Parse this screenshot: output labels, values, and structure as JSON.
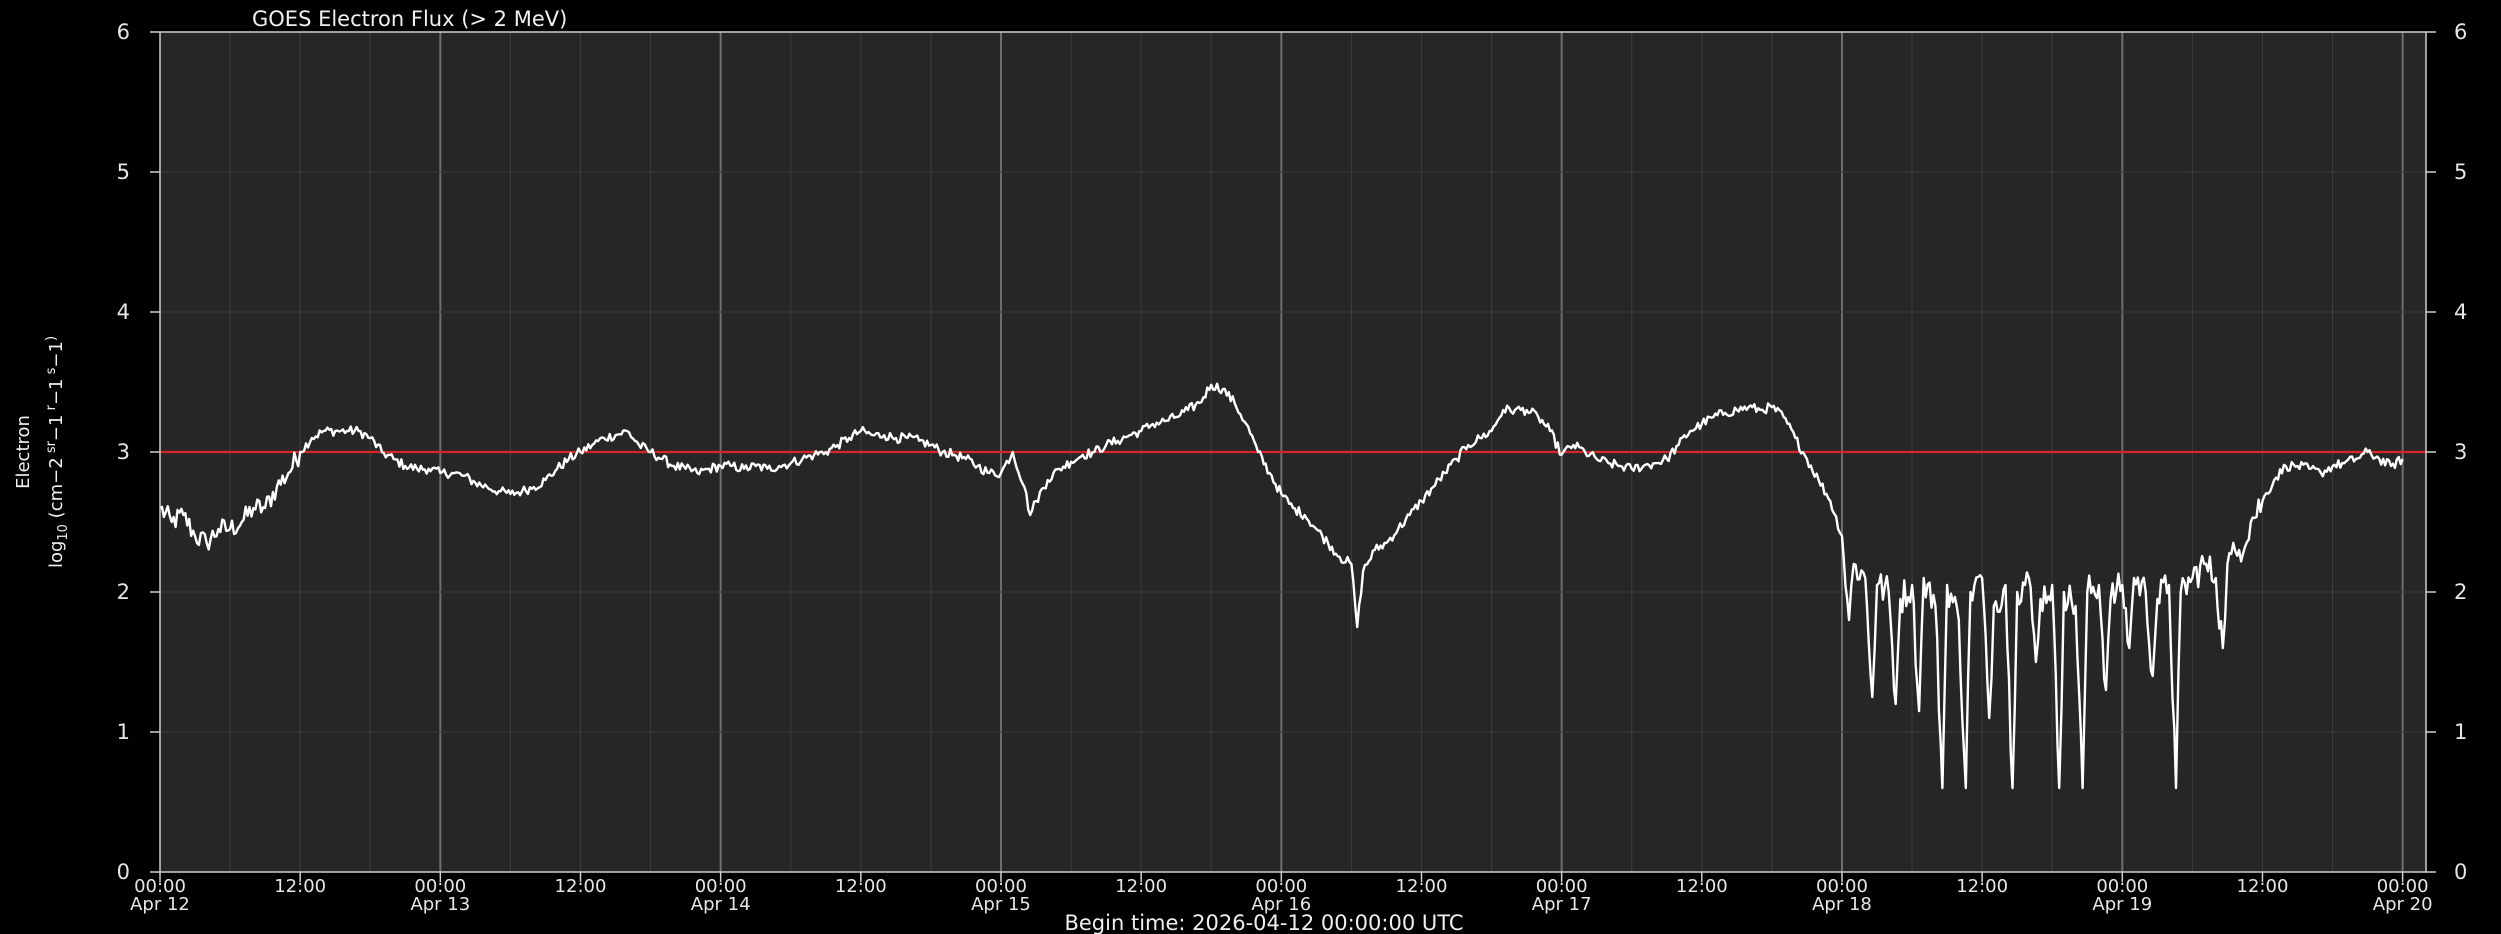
{
  "chart_data": {
    "type": "line",
    "title": "GOES Electron Flux (> 2 MeV)",
    "ylabel_line1": "Electron",
    "ylabel_line2_parts": [
      "log",
      "10",
      " (cm",
      "−2",
      " sr",
      "−1",
      " r",
      "−1",
      " s",
      "−1",
      ")"
    ],
    "footer": "Begin time: 2026-04-12 00:00:00 UTC",
    "ylim": [
      0,
      6
    ],
    "yticks": [
      "0",
      "1",
      "2",
      "3",
      "4",
      "5",
      "6"
    ],
    "xlim_hours": [
      0,
      194
    ],
    "x_unit": "hours since Apr 12 00:00 UTC",
    "xticks": [
      {
        "h": 0,
        "time": "00:00",
        "date": "Apr 12"
      },
      {
        "h": 12,
        "time": "12:00",
        "date": ""
      },
      {
        "h": 24,
        "time": "00:00",
        "date": "Apr 13"
      },
      {
        "h": 36,
        "time": "12:00",
        "date": ""
      },
      {
        "h": 48,
        "time": "00:00",
        "date": "Apr 14"
      },
      {
        "h": 60,
        "time": "12:00",
        "date": ""
      },
      {
        "h": 72,
        "time": "00:00",
        "date": "Apr 15"
      },
      {
        "h": 84,
        "time": "12:00",
        "date": ""
      },
      {
        "h": 96,
        "time": "00:00",
        "date": "Apr 16"
      },
      {
        "h": 108,
        "time": "12:00",
        "date": ""
      },
      {
        "h": 120,
        "time": "00:00",
        "date": "Apr 17"
      },
      {
        "h": 132,
        "time": "12:00",
        "date": ""
      },
      {
        "h": 144,
        "time": "00:00",
        "date": "Apr 18"
      },
      {
        "h": 156,
        "time": "12:00",
        "date": ""
      },
      {
        "h": 168,
        "time": "00:00",
        "date": "Apr 19"
      },
      {
        "h": 180,
        "time": "12:00",
        "date": ""
      },
      {
        "h": 192,
        "time": "00:00",
        "date": "Apr 20"
      }
    ],
    "threshold": {
      "value": 3,
      "color": "#d62728"
    },
    "colors": {
      "background": "#000000",
      "plot_area": "#262626",
      "series": "#ffffff",
      "grid": "#3a3a3a",
      "major_grid": "#6e6e6e"
    },
    "series": [
      {
        "points": [
          [
            0,
            2.6
          ],
          [
            1,
            2.5
          ],
          [
            2,
            2.55
          ],
          [
            3,
            2.4
          ],
          [
            4,
            2.35
          ],
          [
            5,
            2.45
          ],
          [
            6,
            2.45
          ],
          [
            7,
            2.5
          ],
          [
            8,
            2.6
          ],
          [
            9,
            2.6
          ],
          [
            10,
            2.75
          ],
          [
            11,
            2.85
          ],
          [
            12,
            3.0
          ],
          [
            13,
            3.1
          ],
          [
            14,
            3.15
          ],
          [
            15,
            3.15
          ],
          [
            16,
            3.15
          ],
          [
            17,
            3.15
          ],
          [
            18,
            3.1
          ],
          [
            19,
            3.0
          ],
          [
            20,
            2.95
          ],
          [
            21,
            2.9
          ],
          [
            22,
            2.88
          ],
          [
            23,
            2.88
          ],
          [
            24,
            2.85
          ],
          [
            25,
            2.85
          ],
          [
            26,
            2.83
          ],
          [
            27,
            2.78
          ],
          [
            28,
            2.75
          ],
          [
            29,
            2.72
          ],
          [
            30,
            2.7
          ],
          [
            31,
            2.72
          ],
          [
            32,
            2.75
          ],
          [
            33,
            2.8
          ],
          [
            34,
            2.88
          ],
          [
            35,
            2.95
          ],
          [
            36,
            3.0
          ],
          [
            37,
            3.05
          ],
          [
            38,
            3.1
          ],
          [
            39,
            3.12
          ],
          [
            40,
            3.15
          ],
          [
            41,
            3.05
          ],
          [
            42,
            3.0
          ],
          [
            43,
            2.95
          ],
          [
            44,
            2.9
          ],
          [
            45,
            2.88
          ],
          [
            46,
            2.85
          ],
          [
            47,
            2.88
          ],
          [
            48,
            2.9
          ],
          [
            49,
            2.9
          ],
          [
            50,
            2.88
          ],
          [
            51,
            2.9
          ],
          [
            52,
            2.88
          ],
          [
            53,
            2.9
          ],
          [
            54,
            2.92
          ],
          [
            55,
            2.95
          ],
          [
            56,
            2.98
          ],
          [
            57,
            3.0
          ],
          [
            58,
            3.05
          ],
          [
            59,
            3.1
          ],
          [
            60,
            3.15
          ],
          [
            61,
            3.12
          ],
          [
            62,
            3.12
          ],
          [
            63,
            3.1
          ],
          [
            64,
            3.1
          ],
          [
            65,
            3.08
          ],
          [
            66,
            3.05
          ],
          [
            67,
            3.0
          ],
          [
            68,
            2.98
          ],
          [
            69,
            2.95
          ],
          [
            70,
            2.9
          ],
          [
            71,
            2.85
          ],
          [
            72,
            2.85
          ],
          [
            73,
            3.0
          ],
          [
            74,
            2.75
          ],
          [
            74.5,
            2.55
          ],
          [
            75,
            2.65
          ],
          [
            76,
            2.8
          ],
          [
            77,
            2.88
          ],
          [
            78,
            2.93
          ],
          [
            79,
            2.98
          ],
          [
            80,
            3.0
          ],
          [
            81,
            3.05
          ],
          [
            82,
            3.08
          ],
          [
            83,
            3.12
          ],
          [
            84,
            3.15
          ],
          [
            85,
            3.2
          ],
          [
            86,
            3.22
          ],
          [
            87,
            3.25
          ],
          [
            88,
            3.3
          ],
          [
            89,
            3.35
          ],
          [
            90,
            3.48
          ],
          [
            91,
            3.45
          ],
          [
            92,
            3.35
          ],
          [
            93,
            3.2
          ],
          [
            94,
            3.0
          ],
          [
            95,
            2.85
          ],
          [
            96,
            2.7
          ],
          [
            97,
            2.6
          ],
          [
            98,
            2.55
          ],
          [
            99,
            2.45
          ],
          [
            100,
            2.35
          ],
          [
            101,
            2.25
          ],
          [
            102,
            2.2
          ],
          [
            102.5,
            1.75
          ],
          [
            103,
            2.15
          ],
          [
            104,
            2.3
          ],
          [
            105,
            2.35
          ],
          [
            106,
            2.45
          ],
          [
            107,
            2.55
          ],
          [
            108,
            2.65
          ],
          [
            109,
            2.75
          ],
          [
            110,
            2.85
          ],
          [
            111,
            2.95
          ],
          [
            112,
            3.05
          ],
          [
            113,
            3.1
          ],
          [
            114,
            3.15
          ],
          [
            115,
            3.3
          ],
          [
            116,
            3.3
          ],
          [
            117,
            3.3
          ],
          [
            118,
            3.25
          ],
          [
            119,
            3.15
          ],
          [
            120,
            2.98
          ],
          [
            121,
            3.05
          ],
          [
            122,
            3.0
          ],
          [
            123,
            2.95
          ],
          [
            124,
            2.92
          ],
          [
            125,
            2.9
          ],
          [
            126,
            2.88
          ],
          [
            127,
            2.9
          ],
          [
            128,
            2.92
          ],
          [
            129,
            2.95
          ],
          [
            130,
            3.05
          ],
          [
            131,
            3.15
          ],
          [
            132,
            3.2
          ],
          [
            133,
            3.25
          ],
          [
            134,
            3.28
          ],
          [
            135,
            3.3
          ],
          [
            136,
            3.32
          ],
          [
            137,
            3.3
          ],
          [
            138,
            3.32
          ],
          [
            139,
            3.25
          ],
          [
            140,
            3.1
          ],
          [
            141,
            2.95
          ],
          [
            142,
            2.8
          ],
          [
            143,
            2.65
          ],
          [
            144,
            2.4
          ],
          [
            144.6,
            1.8
          ],
          [
            145,
            2.2
          ],
          [
            146,
            2.1
          ],
          [
            146.6,
            1.25
          ],
          [
            147,
            2.05
          ],
          [
            148,
            2.0
          ],
          [
            148.6,
            1.2
          ],
          [
            149,
            1.95
          ],
          [
            150,
            2.05
          ],
          [
            150.6,
            1.15
          ],
          [
            151,
            2.1
          ],
          [
            152,
            1.9
          ],
          [
            152.6,
            0.6
          ],
          [
            153,
            2.05
          ],
          [
            154,
            1.8
          ],
          [
            154.6,
            0.6
          ],
          [
            155,
            2.0
          ],
          [
            156,
            2.1
          ],
          [
            156.6,
            1.1
          ],
          [
            157,
            1.9
          ],
          [
            158,
            2.05
          ],
          [
            158.6,
            0.6
          ],
          [
            159,
            2.0
          ],
          [
            160,
            2.1
          ],
          [
            160.6,
            1.5
          ],
          [
            161,
            1.95
          ],
          [
            162,
            2.05
          ],
          [
            162.6,
            0.6
          ],
          [
            163,
            2.0
          ],
          [
            164,
            1.9
          ],
          [
            164.6,
            0.6
          ],
          [
            165,
            2.0
          ],
          [
            166,
            2.05
          ],
          [
            166.6,
            1.3
          ],
          [
            167,
            1.95
          ],
          [
            168,
            2.05
          ],
          [
            168.6,
            1.6
          ],
          [
            169,
            2.1
          ],
          [
            170,
            2.0
          ],
          [
            170.6,
            1.4
          ],
          [
            171,
            1.95
          ],
          [
            172,
            2.05
          ],
          [
            172.6,
            0.6
          ],
          [
            173,
            2.0
          ],
          [
            174,
            2.1
          ],
          [
            175,
            2.2
          ],
          [
            176,
            2.1
          ],
          [
            176.6,
            1.6
          ],
          [
            177,
            2.2
          ],
          [
            178,
            2.3
          ],
          [
            179,
            2.5
          ],
          [
            180,
            2.65
          ],
          [
            181,
            2.8
          ],
          [
            182,
            2.9
          ],
          [
            183,
            2.9
          ],
          [
            184,
            2.88
          ],
          [
            185,
            2.85
          ],
          [
            186,
            2.9
          ],
          [
            187,
            2.92
          ],
          [
            188,
            2.95
          ],
          [
            189,
            3.0
          ],
          [
            190,
            2.95
          ],
          [
            191,
            2.9
          ],
          [
            192,
            2.95
          ]
        ]
      }
    ]
  }
}
